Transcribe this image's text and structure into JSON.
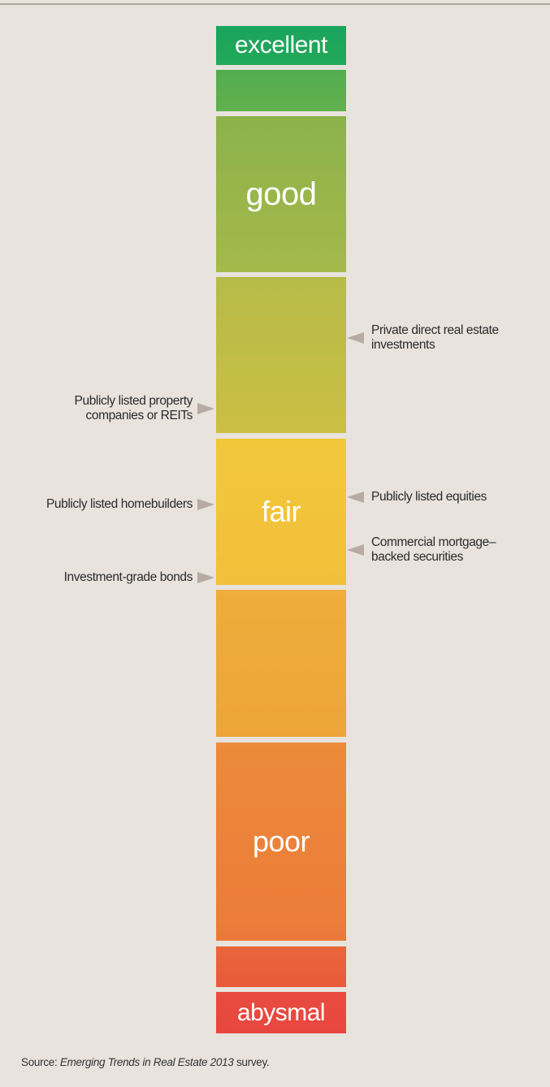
{
  "scale": [
    {
      "label": "excellent"
    },
    {
      "label": null
    },
    {
      "label": "good"
    },
    {
      "label": null
    },
    {
      "label": "fair"
    },
    {
      "label": null
    },
    {
      "label": "poor"
    },
    {
      "label": null
    },
    {
      "label": "abysmal"
    }
  ],
  "items": [
    {
      "lines": [
        "Private direct real estate",
        "investments"
      ],
      "side": "right"
    },
    {
      "lines": [
        "Publicly listed property",
        "companies or REITs"
      ],
      "side": "left"
    },
    {
      "lines": [
        "Publicly listed equities"
      ],
      "side": "right"
    },
    {
      "lines": [
        "Publicly listed homebuilders"
      ],
      "side": "left"
    },
    {
      "lines": [
        "Commercial mortgage–",
        "backed securities"
      ],
      "side": "right"
    },
    {
      "lines": [
        "Investment-grade bonds"
      ],
      "side": "left"
    }
  ],
  "source": {
    "prefix": "Source:",
    "title": "Emerging Trends in Real Estate 2013",
    "suffix": "survey."
  }
}
